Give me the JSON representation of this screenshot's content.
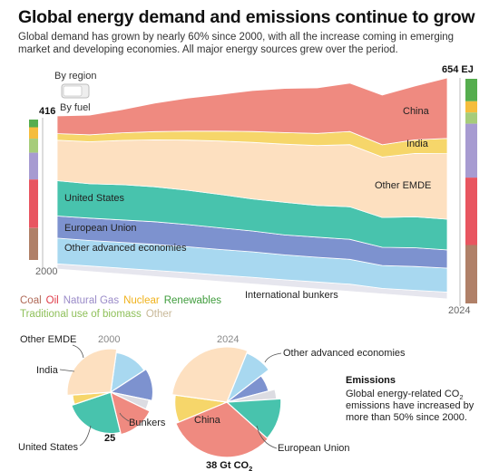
{
  "title": "Global energy demand and emissions continue to grow",
  "subtitle": "Global demand has grown by nearly 60% since 2000, with all the increase coming in emerging market and developing economies. All major energy sources grew over the period.",
  "toggle": {
    "option_region": "By region",
    "option_fuel": "By fuel",
    "selected": "By region"
  },
  "emissions_box": {
    "title": "Emissions",
    "text_before_sub": "Global energy-related CO",
    "sub": "2",
    "text_after_sub": " emissions have increased by more than 50% since 2000."
  },
  "colors": {
    "China": "#ef8a80",
    "India": "#f6d66a",
    "Other EMDE": "#fde0c0",
    "United States": "#48c3ad",
    "European Union": "#7d92cf",
    "Other advanced economies": "#a8d8f0",
    "International bunkers": "#e6e6ee",
    "Coal": "#b08068",
    "Oil": "#e85560",
    "Natural Gas": "#a79bd1",
    "Nuclear": "#f5bd3c",
    "Renewables": "#55ad4e",
    "Traditional use of biomass": "#a6cc7a",
    "Other": "#d3c3a3",
    "Bunkers": "#dcdce2"
  },
  "legend": [
    {
      "label": "Coal",
      "color": "#b06a58"
    },
    {
      "label": "Oil",
      "color": "#e03c4a"
    },
    {
      "label": "Natural Gas",
      "color": "#9a8bc8"
    },
    {
      "label": "Nuclear",
      "color": "#f0b21c"
    },
    {
      "label": "Renewables",
      "color": "#3f9c3c"
    },
    {
      "label": "Traditional use of biomass",
      "color": "#8fc05a"
    },
    {
      "label": "Other",
      "color": "#c8b898"
    }
  ],
  "chart_data": [
    {
      "type": "area",
      "title": "",
      "x": [
        2000,
        2002,
        2004,
        2006,
        2008,
        2010,
        2012,
        2014,
        2016,
        2018,
        2020,
        2022,
        2024
      ],
      "x_labels": [
        "2000",
        "2024"
      ],
      "unit": "EJ",
      "total_labels": [
        "416",
        "654 EJ"
      ],
      "stack_order": "bottom-to-top",
      "series": [
        {
          "name": "International bunkers",
          "values": [
            14,
            15,
            16,
            17,
            18,
            18,
            19,
            19,
            20,
            21,
            16,
            18,
            20
          ]
        },
        {
          "name": "Other advanced economies",
          "values": [
            70,
            70,
            71,
            72,
            72,
            72,
            72,
            71,
            71,
            72,
            67,
            70,
            71
          ]
        },
        {
          "name": "European Union",
          "values": [
            60,
            61,
            62,
            63,
            62,
            61,
            59,
            57,
            58,
            58,
            53,
            55,
            54
          ]
        },
        {
          "name": "United States",
          "values": [
            96,
            94,
            97,
            97,
            96,
            94,
            91,
            93,
            91,
            94,
            87,
            91,
            91
          ]
        },
        {
          "name": "Other EMDE",
          "values": [
            110,
            115,
            122,
            130,
            140,
            150,
            160,
            166,
            172,
            180,
            176,
            186,
            194
          ]
        },
        {
          "name": "India",
          "values": [
            18,
            19,
            21,
            23,
            25,
            28,
            31,
            33,
            35,
            38,
            36,
            40,
            45
          ]
        },
        {
          "name": "China",
          "values": [
            48,
            54,
            64,
            79,
            92,
            103,
            116,
            126,
            131,
            140,
            145,
            158,
            179
          ]
        }
      ],
      "region_labels": [
        "China",
        "India",
        "Other EMDE",
        "United States",
        "European Union",
        "Other advanced economies",
        "International bunkers"
      ],
      "fuel_bars": {
        "order_top_to_bottom": [
          "Renewables",
          "Nuclear",
          "Traditional use of biomass",
          "Natural Gas",
          "Oil",
          "Coal"
        ],
        "2000": [
          6,
          9,
          11,
          21,
          38,
          25
        ],
        "2024": [
          10,
          5,
          5,
          24,
          30,
          26
        ]
      }
    },
    {
      "type": "pie",
      "title": "2000",
      "total_label": "25",
      "categories": [
        "Other advanced economies",
        "European Union",
        "Bunkers",
        "China",
        "United States",
        "India",
        "Other EMDE"
      ],
      "values": [
        3.4,
        3.1,
        1.0,
        3.5,
        5.9,
        1.0,
        7.1
      ],
      "labels": [
        "Other EMDE",
        "India",
        "Bunkers",
        "United States"
      ]
    },
    {
      "type": "pie",
      "title": "2024",
      "total_label": "38 Gt CO2",
      "categories": [
        "Other advanced economies",
        "European Union",
        "Bunkers",
        "United States",
        "China",
        "India",
        "Other EMDE"
      ],
      "values": [
        3.2,
        2.4,
        1.2,
        4.8,
        12.2,
        3.2,
        11.0
      ],
      "labels": [
        "Other advanced economies",
        "China",
        "European Union"
      ]
    }
  ]
}
